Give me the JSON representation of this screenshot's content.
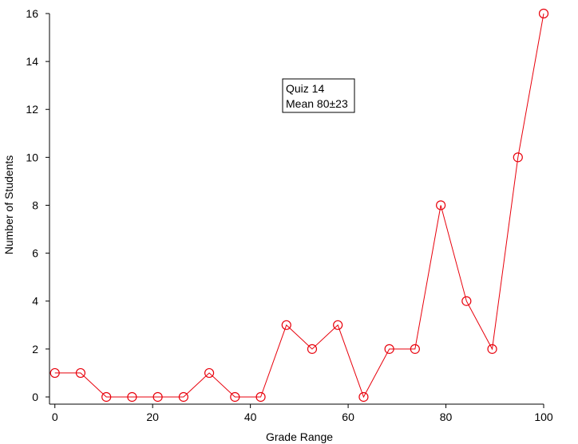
{
  "chart_data": {
    "type": "line",
    "x_label": "Grade Range",
    "y_label": "Number of Students",
    "annotation": [
      "Quiz 14",
      "Mean 80±23"
    ],
    "x": [
      0,
      5.26,
      10.53,
      15.79,
      21.05,
      26.32,
      31.58,
      36.84,
      42.11,
      47.37,
      52.63,
      57.89,
      63.16,
      68.42,
      73.68,
      78.95,
      84.21,
      89.47,
      94.74,
      100
    ],
    "series": [
      {
        "color": "#e8000b",
        "values": [
          1,
          1,
          0,
          0,
          0,
          0,
          1,
          0,
          0,
          3,
          2,
          3,
          0,
          2,
          2,
          8,
          4,
          2,
          10,
          16
        ]
      }
    ],
    "xlim": [
      -1.1,
      100
    ],
    "xticks": [
      0,
      20,
      40,
      60,
      80,
      100
    ],
    "ylim": [
      -0.3,
      16
    ],
    "yticks": [
      0,
      2,
      4,
      6,
      8,
      10,
      12,
      14,
      16
    ],
    "marker": "open-circle",
    "grid": false
  }
}
